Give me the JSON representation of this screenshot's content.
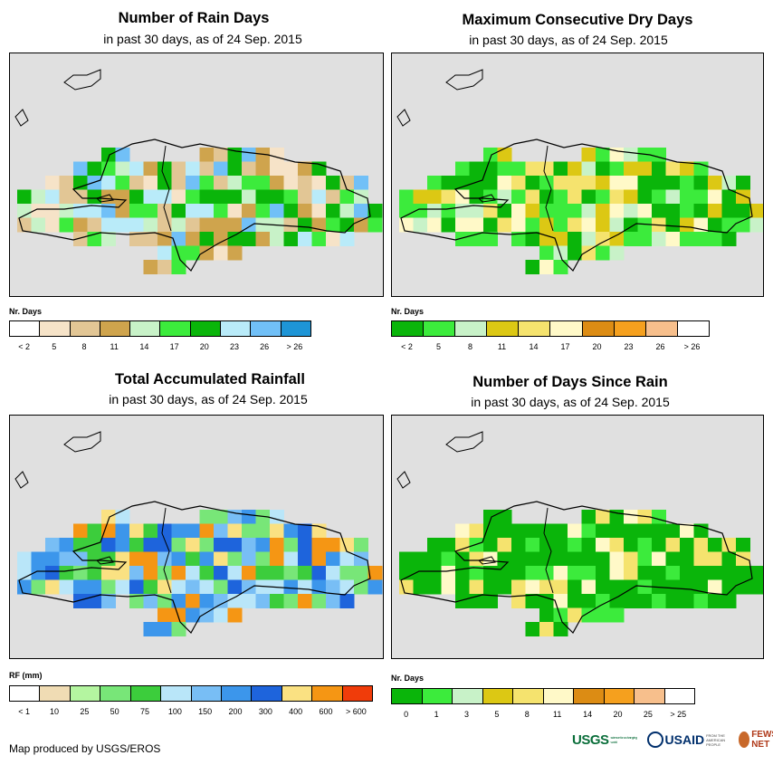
{
  "panels": [
    {
      "title": "Number of Rain Days",
      "subtitle": "in past 30 days, as of 24 Sep. 2015",
      "unit_label": "Nr. Days",
      "legend": {
        "colors": [
          "#ffffff",
          "#f6e3c8",
          "#e2c695",
          "#cfa44d",
          "#c8f2c8",
          "#3ceb3c",
          "#0ab50a",
          "#b9ebf9",
          "#71c0f7",
          "#1e95d6"
        ],
        "ticks": [
          "< 2",
          "5",
          "8",
          "11",
          "14",
          "17",
          "20",
          "23",
          "26",
          "> 26"
        ]
      },
      "palette": "rain_days"
    },
    {
      "title": "Maximum Consecutive Dry Days",
      "subtitle": "in past 30 days, as of 24 Sep. 2015",
      "unit_label": "Nr. Days",
      "legend": {
        "colors": [
          "#0ab50a",
          "#3ceb3c",
          "#c8f2c8",
          "#dcc814",
          "#f5e36e",
          "#fff9c8",
          "#dc8c14",
          "#f5a01e",
          "#f7bf8c",
          "#ffffff"
        ],
        "ticks": [
          "< 2",
          "5",
          "8",
          "11",
          "14",
          "17",
          "20",
          "23",
          "26",
          "> 26"
        ]
      },
      "palette": "dry_days"
    },
    {
      "title": "Total Accumulated Rainfall",
      "subtitle": "in past 30 days, as of 24 Sep. 2015",
      "unit_label": "RF (mm)",
      "legend": {
        "colors": [
          "#ffffff",
          "#f0dcb4",
          "#b4f5a0",
          "#78e678",
          "#3ccd3c",
          "#b9e6f9",
          "#78bef5",
          "#3c96eb",
          "#1e64dc",
          "#fae182",
          "#f59614",
          "#f03c0a"
        ],
        "ticks": [
          "< 1",
          "10",
          "25",
          "50",
          "75",
          "100",
          "150",
          "200",
          "300",
          "400",
          "600",
          "> 600"
        ]
      },
      "palette": "rainfall"
    },
    {
      "title": "Number of Days Since Rain",
      "subtitle": "in past 30 days, as of 24 Sep. 2015",
      "unit_label": "Nr. Days",
      "legend": {
        "colors": [
          "#0ab50a",
          "#3ceb3c",
          "#c8f2c8",
          "#dcc814",
          "#f5e36e",
          "#fff9c8",
          "#dc8c14",
          "#f5a01e",
          "#f7bf8c",
          "#ffffff"
        ],
        "ticks": [
          "0",
          "1",
          "3",
          "5",
          "8",
          "11",
          "14",
          "20",
          "25",
          "> 25"
        ]
      },
      "palette": "since_rain"
    }
  ],
  "credit": "Map produced by USGS/EROS",
  "logos": {
    "usgs": "USGS",
    "usgs_tagline": "science for a changing world",
    "usaid": "USAID",
    "usaid_tagline": "FROM THE AMERICAN PEOPLE",
    "fews": "FEWS NET"
  }
}
